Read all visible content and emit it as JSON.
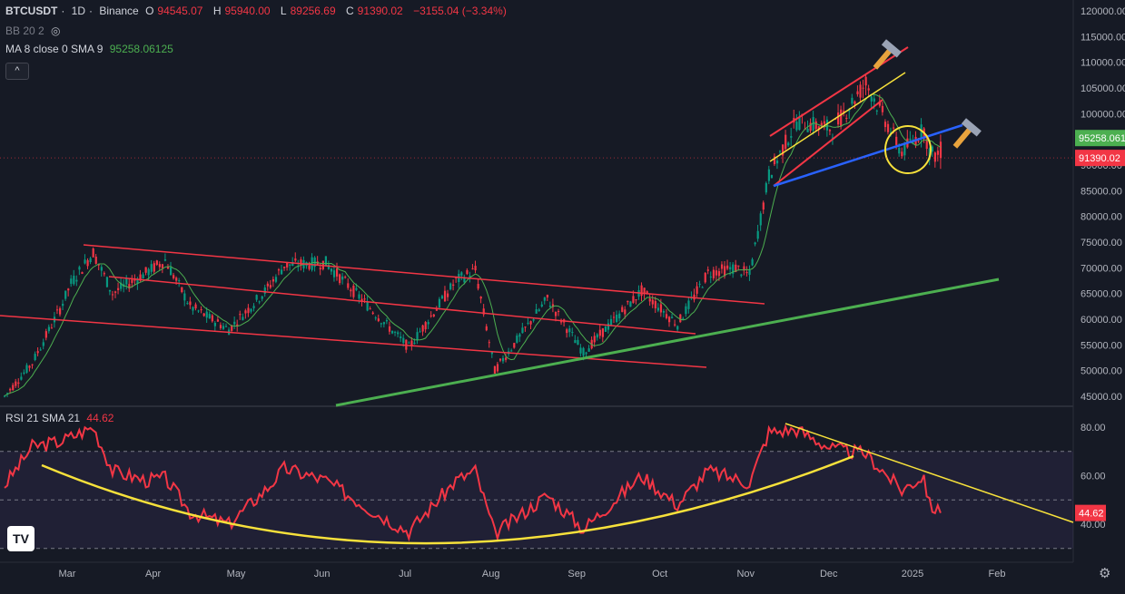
{
  "header": {
    "symbol": "BTCUSDT",
    "sep1": "·",
    "interval": "1D",
    "sep2": "·",
    "exchange": "Binance",
    "open_label": "O",
    "open": "94545.07",
    "high_label": "H",
    "high": "95940.00",
    "low_label": "L",
    "low": "89256.69",
    "close_label": "C",
    "close": "91390.02",
    "change": "−3155.04 (−3.34%)"
  },
  "indicators": {
    "bb": "BB 20 2",
    "ma": "MA 8 close 0 SMA 9",
    "ma_value": "95258.06125",
    "rsi": "RSI 21 SMA 21",
    "rsi_value": "44.62"
  },
  "collapse_button": "^",
  "price_labels": {
    "ma": "95258.0612",
    "last": "91390.02"
  },
  "rsi_label": "44.62",
  "colors": {
    "background": "#161a25",
    "up": "#089981",
    "down": "#f23645",
    "channel": "#f23645",
    "trend_green": "#4caf50",
    "yellow": "#f7e13b",
    "blue": "#2962ff",
    "rsi_line": "#f23645",
    "ma_line": "#4caf50"
  },
  "chart_data": [
    {
      "type": "candlestick",
      "symbol": "BTCUSDT",
      "interval": "1D",
      "ylim": [
        43000,
        121000
      ],
      "y_scale": "linear",
      "y_ticks": [
        45000,
        50000,
        55000,
        60000,
        65000,
        70000,
        75000,
        80000,
        85000,
        90000,
        95000,
        100000,
        105000,
        110000,
        115000,
        120000
      ],
      "y_tick_labels": [
        "45000.00",
        "50000.00",
        "55000.00",
        "60000.00",
        "65000.00",
        "70000.00",
        "75000.00",
        "80000.00",
        "85000.00",
        "90000.00",
        "95000.00",
        "100000.00",
        "105000.00",
        "110000.00",
        "115000.00",
        "120000.00"
      ],
      "x_ticks": [
        "Mar",
        "Apr",
        "May",
        "Jun",
        "Jul",
        "Aug",
        "Sep",
        "Oct",
        "Nov",
        "Dec",
        "2025",
        "Feb"
      ],
      "approx_closes": [
        [
          "Feb 10",
          45000
        ],
        [
          "Feb 20",
          51500
        ],
        [
          "Mar 1",
          62000
        ],
        [
          "Mar 5",
          67000
        ],
        [
          "Mar 13",
          73000
        ],
        [
          "Mar 20",
          65000
        ],
        [
          "Apr 1",
          69000
        ],
        [
          "Apr 8",
          71500
        ],
        [
          "Apr 17",
          62500
        ],
        [
          "May 1",
          58000
        ],
        [
          "May 15",
          66000
        ],
        [
          "May 21",
          70500
        ],
        [
          "Jun 5",
          71000
        ],
        [
          "Jun 24",
          60500
        ],
        [
          "Jul 5",
          54500
        ],
        [
          "Jul 22",
          67500
        ],
        [
          "Jul 29",
          69500
        ],
        [
          "Aug 5",
          50000
        ],
        [
          "Aug 24",
          64000
        ],
        [
          "Sep 6",
          53500
        ],
        [
          "Sep 27",
          65500
        ],
        [
          "Oct 10",
          59000
        ],
        [
          "Oct 21",
          69000
        ],
        [
          "Oct 31",
          70000
        ],
        [
          "Nov 5",
          68500
        ],
        [
          "Nov 12",
          88000
        ],
        [
          "Nov 22",
          98500
        ],
        [
          "Dec 5",
          97000
        ],
        [
          "Dec 17",
          106000
        ],
        [
          "Dec 30",
          92500
        ],
        [
          "Jan 7",
          97000
        ],
        [
          "Jan 9",
          92500
        ],
        [
          "Jan 13",
          91390
        ]
      ],
      "bollinger_bands": "BB 20 2",
      "ma_label": "MA 8 close 0 SMA 9",
      "ma_last": 95258.06125,
      "last_price": 91390.02
    },
    {
      "type": "line",
      "name": "RSI 21 SMA 21",
      "ylim": [
        22,
        86
      ],
      "y_ticks": [
        40,
        60,
        80
      ],
      "y_tick_labels": [
        "40.00",
        "60.00",
        "80.00"
      ],
      "bands": [
        30,
        50,
        70
      ],
      "approx_values": [
        [
          "Feb 10",
          56
        ],
        [
          "Feb 20",
          72
        ],
        [
          "Mar 1",
          74
        ],
        [
          "Mar 13",
          80
        ],
        [
          "Mar 20",
          62
        ],
        [
          "Apr 1",
          58
        ],
        [
          "Apr 8",
          59
        ],
        [
          "Apr 17",
          45
        ],
        [
          "May 1",
          40
        ],
        [
          "May 15",
          55
        ],
        [
          "May 21",
          63
        ],
        [
          "Jun 5",
          58
        ],
        [
          "Jun 24",
          44
        ],
        [
          "Jul 5",
          37
        ],
        [
          "Jul 22",
          58
        ],
        [
          "Jul 29",
          62
        ],
        [
          "Aug 5",
          36
        ],
        [
          "Aug 24",
          52
        ],
        [
          "Sep 6",
          38
        ],
        [
          "Sep 27",
          60
        ],
        [
          "Oct 10",
          48
        ],
        [
          "Oct 21",
          62
        ],
        [
          "Nov 5",
          57
        ],
        [
          "Nov 12",
          78
        ],
        [
          "Nov 22",
          79
        ],
        [
          "Dec 5",
          71
        ],
        [
          "Dec 17",
          69
        ],
        [
          "Dec 30",
          54
        ],
        [
          "Jan 7",
          60
        ],
        [
          "Jan 9",
          48
        ],
        [
          "Jan 13",
          44.62
        ]
      ],
      "last_value": 44.62
    }
  ]
}
